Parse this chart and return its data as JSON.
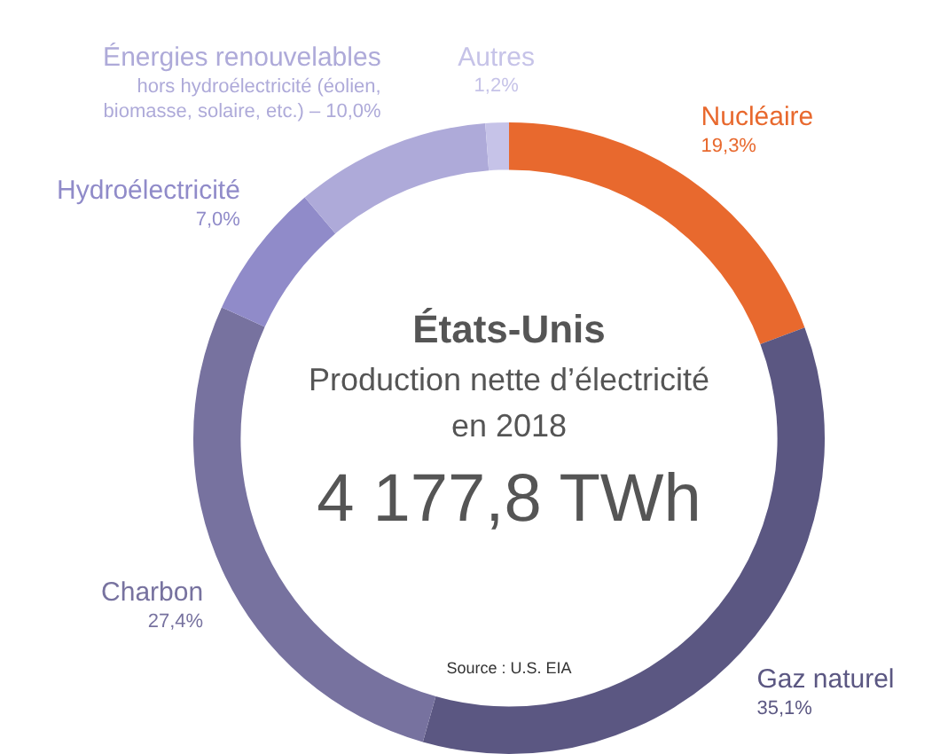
{
  "chart_data": {
    "type": "donut",
    "title": "États-Unis",
    "subtitle": "Production nette d’électricité en 2018",
    "categories": [
      "Nucléaire",
      "Gaz naturel",
      "Charbon",
      "Hydroélectricité",
      "Énergies renouvelables",
      "Autres"
    ],
    "values": [
      19.3,
      35.1,
      27.4,
      7.0,
      10.0,
      1.2
    ],
    "colors": [
      "#e8692e",
      "#5b5782",
      "#77729f",
      "#908bc9",
      "#aeaad9",
      "#c6c3e8"
    ],
    "value_labels": [
      "19,3%",
      "35,1%",
      "27,4%",
      "7,0%",
      "10,0%",
      "1,2%"
    ],
    "annotations": [
      "4 177,8 TWh",
      "Source : U.S. EIA",
      {
        "text": "hors hydroélectricité (éolien, biomasse, solaire, etc.) –",
        "x": "Énergies renouvelables"
      }
    ],
    "legend": false
  }
}
